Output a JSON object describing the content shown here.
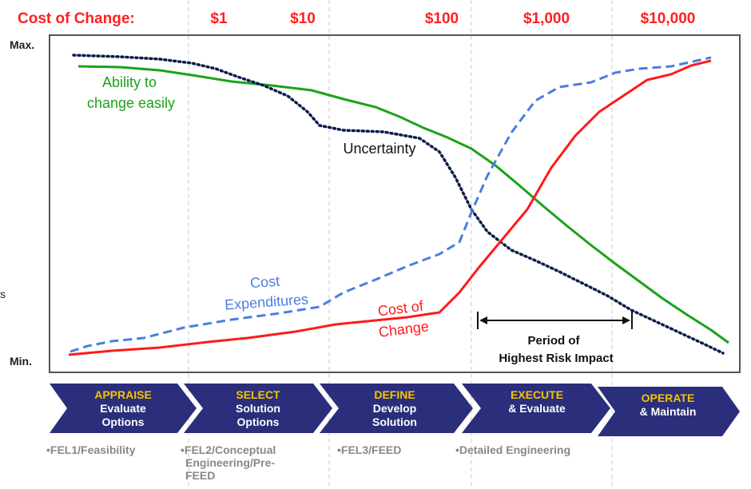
{
  "cost_header": {
    "title": "Cost of Change:",
    "ticks": [
      "$1",
      "$10",
      "$100",
      "$1,000",
      "$10,000"
    ]
  },
  "axis": {
    "max_label": "Max.",
    "min_label": "Min.",
    "edge_mark": "s"
  },
  "curves": {
    "ability": {
      "line1": "Ability to",
      "line2": "change easily",
      "color": "#1aa31a"
    },
    "uncertainty": {
      "label": "Uncertainty",
      "color": "#0c1a4a"
    },
    "expenditures": {
      "line1": "Cost",
      "line2": "Expenditures",
      "color": "#4a7de0"
    },
    "cost_of_change": {
      "line1": "Cost of",
      "line2": "Change",
      "color": "#ff1a1a"
    }
  },
  "risk_period": {
    "line1": "Period of",
    "line2": "Highest Risk Impact"
  },
  "phases": [
    {
      "title": "APPRAISE",
      "sub1": "Evaluate",
      "sub2": "Options",
      "sublabel": [
        "•FEL1/Feasibility"
      ]
    },
    {
      "title": "SELECT",
      "sub1": "Solution",
      "sub2": "Options",
      "sublabel": [
        "•FEL2/Conceptual",
        "Engineering/Pre-",
        "FEED"
      ]
    },
    {
      "title": "DEFINE",
      "sub1": "Develop",
      "sub2": "Solution",
      "sublabel": [
        "•FEL3/FEED"
      ]
    },
    {
      "title": "EXECUTE",
      "sub1": "& Evaluate",
      "sub2": "",
      "sublabel": [
        "•Detailed Engineering"
      ]
    },
    {
      "title": "OPERATE",
      "sub1": "& Maintain",
      "sub2": "",
      "sublabel": []
    }
  ],
  "colors": {
    "chevron": "#2b2e7a",
    "chevron_title": "#f5c400",
    "cost_red": "#ff2020"
  }
}
